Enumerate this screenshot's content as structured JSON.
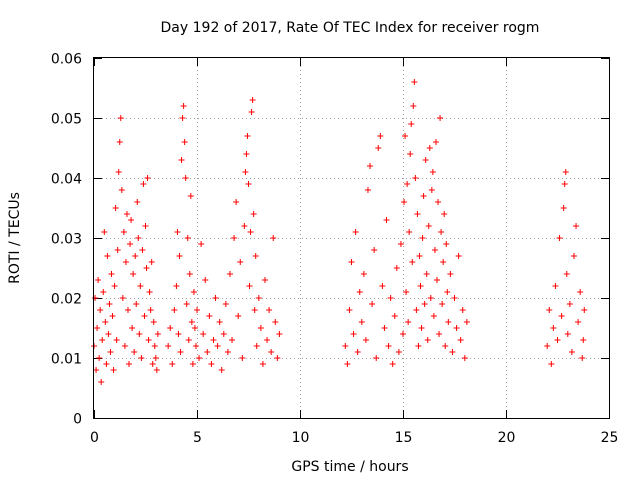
{
  "chart_data": {
    "type": "scatter",
    "title": "Day 192 of 2017, Rate Of TEC Index for receiver rogm",
    "xlabel": "GPS time / hours",
    "ylabel": "ROTI / TECUs",
    "xlim": [
      0,
      25
    ],
    "ylim": [
      0,
      0.06
    ],
    "xticks": [
      "0",
      "5",
      "10",
      "15",
      "20",
      "25"
    ],
    "xtick_values": [
      0,
      5,
      10,
      15,
      20,
      25
    ],
    "yticks": [
      "0",
      "0.01",
      "0.02",
      "0.03",
      "0.04",
      "0.05",
      "0.06"
    ],
    "ytick_values": [
      0,
      0.01,
      0.02,
      0.03,
      0.04,
      0.05,
      0.06
    ],
    "grid": true,
    "marker": "+",
    "marker_color": "#ff0000",
    "series": [
      {
        "name": "ROTI",
        "points": [
          [
            0.0,
            0.012
          ],
          [
            0.05,
            0.02
          ],
          [
            0.1,
            0.008
          ],
          [
            0.15,
            0.015
          ],
          [
            0.2,
            0.023
          ],
          [
            0.25,
            0.01
          ],
          [
            0.3,
            0.018
          ],
          [
            0.35,
            0.006
          ],
          [
            0.4,
            0.013
          ],
          [
            0.45,
            0.021
          ],
          [
            0.5,
            0.031
          ],
          [
            0.55,
            0.016
          ],
          [
            0.6,
            0.009
          ],
          [
            0.65,
            0.027
          ],
          [
            0.7,
            0.014
          ],
          [
            0.75,
            0.019
          ],
          [
            0.8,
            0.011
          ],
          [
            0.85,
            0.024
          ],
          [
            0.9,
            0.017
          ],
          [
            0.95,
            0.008
          ],
          [
            1.0,
            0.022
          ],
          [
            1.05,
            0.035
          ],
          [
            1.1,
            0.013
          ],
          [
            1.15,
            0.028
          ],
          [
            1.2,
            0.041
          ],
          [
            1.25,
            0.046
          ],
          [
            1.3,
            0.05
          ],
          [
            1.35,
            0.038
          ],
          [
            1.4,
            0.02
          ],
          [
            1.45,
            0.031
          ],
          [
            1.5,
            0.012
          ],
          [
            1.55,
            0.026
          ],
          [
            1.6,
            0.034
          ],
          [
            1.65,
            0.018
          ],
          [
            1.7,
            0.009
          ],
          [
            1.75,
            0.029
          ],
          [
            1.8,
            0.033
          ],
          [
            1.85,
            0.015
          ],
          [
            1.9,
            0.024
          ],
          [
            1.95,
            0.011
          ],
          [
            2.0,
            0.027
          ],
          [
            2.05,
            0.019
          ],
          [
            2.1,
            0.036
          ],
          [
            2.15,
            0.03
          ],
          [
            2.2,
            0.014
          ],
          [
            2.25,
            0.022
          ],
          [
            2.3,
            0.01
          ],
          [
            2.35,
            0.028
          ],
          [
            2.4,
            0.039
          ],
          [
            2.45,
            0.017
          ],
          [
            2.5,
            0.032
          ],
          [
            2.55,
            0.025
          ],
          [
            2.6,
            0.04
          ],
          [
            2.65,
            0.013
          ],
          [
            2.7,
            0.021
          ],
          [
            2.75,
            0.018
          ],
          [
            2.8,
            0.026
          ],
          [
            2.85,
            0.009
          ],
          [
            2.9,
            0.016
          ],
          [
            2.95,
            0.012
          ],
          [
            3.0,
            0.01
          ],
          [
            3.05,
            0.008
          ],
          [
            3.1,
            0.014
          ],
          [
            3.6,
            0.012
          ],
          [
            3.7,
            0.015
          ],
          [
            3.8,
            0.009
          ],
          [
            3.9,
            0.018
          ],
          [
            4.0,
            0.022
          ],
          [
            4.05,
            0.031
          ],
          [
            4.1,
            0.014
          ],
          [
            4.15,
            0.027
          ],
          [
            4.2,
            0.011
          ],
          [
            4.25,
            0.043
          ],
          [
            4.3,
            0.05
          ],
          [
            4.35,
            0.052
          ],
          [
            4.4,
            0.046
          ],
          [
            4.45,
            0.04
          ],
          [
            4.5,
            0.019
          ],
          [
            4.55,
            0.03
          ],
          [
            4.6,
            0.013
          ],
          [
            4.65,
            0.024
          ],
          [
            4.7,
            0.037
          ],
          [
            4.75,
            0.016
          ],
          [
            4.8,
            0.009
          ],
          [
            4.85,
            0.021
          ],
          [
            4.9,
            0.015
          ],
          [
            4.95,
            0.012
          ],
          [
            5.0,
            0.018
          ],
          [
            5.1,
            0.01
          ],
          [
            5.2,
            0.029
          ],
          [
            5.3,
            0.014
          ],
          [
            5.4,
            0.023
          ],
          [
            5.5,
            0.011
          ],
          [
            5.6,
            0.017
          ],
          [
            5.7,
            0.009
          ],
          [
            5.8,
            0.013
          ],
          [
            5.9,
            0.02
          ],
          [
            6.0,
            0.012
          ],
          [
            6.1,
            0.016
          ],
          [
            6.2,
            0.008
          ],
          [
            6.3,
            0.014
          ],
          [
            6.4,
            0.019
          ],
          [
            6.5,
            0.011
          ],
          [
            6.6,
            0.024
          ],
          [
            6.7,
            0.013
          ],
          [
            6.8,
            0.03
          ],
          [
            6.9,
            0.036
          ],
          [
            7.0,
            0.017
          ],
          [
            7.1,
            0.026
          ],
          [
            7.2,
            0.01
          ],
          [
            7.3,
            0.032
          ],
          [
            7.35,
            0.041
          ],
          [
            7.4,
            0.044
          ],
          [
            7.45,
            0.047
          ],
          [
            7.5,
            0.039
          ],
          [
            7.55,
            0.022
          ],
          [
            7.6,
            0.031
          ],
          [
            7.65,
            0.051
          ],
          [
            7.7,
            0.053
          ],
          [
            7.75,
            0.034
          ],
          [
            7.8,
            0.018
          ],
          [
            7.85,
            0.027
          ],
          [
            7.9,
            0.012
          ],
          [
            8.0,
            0.02
          ],
          [
            8.1,
            0.015
          ],
          [
            8.2,
            0.009
          ],
          [
            8.3,
            0.023
          ],
          [
            8.4,
            0.013
          ],
          [
            8.5,
            0.018
          ],
          [
            8.6,
            0.011
          ],
          [
            8.7,
            0.03
          ],
          [
            8.8,
            0.016
          ],
          [
            8.9,
            0.01
          ],
          [
            9.0,
            0.014
          ],
          [
            12.2,
            0.012
          ],
          [
            12.3,
            0.009
          ],
          [
            12.4,
            0.018
          ],
          [
            12.5,
            0.026
          ],
          [
            12.6,
            0.014
          ],
          [
            12.7,
            0.031
          ],
          [
            12.8,
            0.011
          ],
          [
            12.9,
            0.021
          ],
          [
            13.0,
            0.016
          ],
          [
            13.1,
            0.024
          ],
          [
            13.2,
            0.013
          ],
          [
            13.3,
            0.038
          ],
          [
            13.4,
            0.042
          ],
          [
            13.5,
            0.019
          ],
          [
            13.6,
            0.028
          ],
          [
            13.7,
            0.01
          ],
          [
            13.8,
            0.045
          ],
          [
            13.9,
            0.047
          ],
          [
            14.0,
            0.022
          ],
          [
            14.1,
            0.015
          ],
          [
            14.2,
            0.033
          ],
          [
            14.3,
            0.012
          ],
          [
            14.4,
            0.02
          ],
          [
            14.5,
            0.009
          ],
          [
            14.6,
            0.017
          ],
          [
            14.7,
            0.025
          ],
          [
            14.8,
            0.011
          ],
          [
            14.9,
            0.029
          ],
          [
            15.0,
            0.014
          ],
          [
            15.05,
            0.036
          ],
          [
            15.1,
            0.047
          ],
          [
            15.15,
            0.021
          ],
          [
            15.2,
            0.039
          ],
          [
            15.25,
            0.016
          ],
          [
            15.3,
            0.031
          ],
          [
            15.35,
            0.044
          ],
          [
            15.4,
            0.049
          ],
          [
            15.45,
            0.026
          ],
          [
            15.5,
            0.052
          ],
          [
            15.55,
            0.056
          ],
          [
            15.6,
            0.04
          ],
          [
            15.65,
            0.018
          ],
          [
            15.7,
            0.034
          ],
          [
            15.75,
            0.012
          ],
          [
            15.8,
            0.027
          ],
          [
            15.85,
            0.022
          ],
          [
            15.9,
            0.015
          ],
          [
            15.95,
            0.03
          ],
          [
            16.0,
            0.037
          ],
          [
            16.05,
            0.019
          ],
          [
            16.1,
            0.043
          ],
          [
            16.15,
            0.024
          ],
          [
            16.2,
            0.013
          ],
          [
            16.25,
            0.032
          ],
          [
            16.3,
            0.045
          ],
          [
            16.35,
            0.02
          ],
          [
            16.4,
            0.038
          ],
          [
            16.45,
            0.041
          ],
          [
            16.5,
            0.017
          ],
          [
            16.55,
            0.028
          ],
          [
            16.6,
            0.046
          ],
          [
            16.65,
            0.023
          ],
          [
            16.7,
            0.036
          ],
          [
            16.75,
            0.014
          ],
          [
            16.8,
            0.05
          ],
          [
            16.85,
            0.031
          ],
          [
            16.9,
            0.019
          ],
          [
            16.95,
            0.026
          ],
          [
            17.0,
            0.034
          ],
          [
            17.05,
            0.012
          ],
          [
            17.1,
            0.029
          ],
          [
            17.15,
            0.021
          ],
          [
            17.2,
            0.016
          ],
          [
            17.3,
            0.024
          ],
          [
            17.4,
            0.011
          ],
          [
            17.5,
            0.02
          ],
          [
            17.6,
            0.015
          ],
          [
            17.7,
            0.027
          ],
          [
            17.8,
            0.013
          ],
          [
            17.9,
            0.018
          ],
          [
            18.0,
            0.01
          ],
          [
            18.1,
            0.016
          ],
          [
            22.0,
            0.012
          ],
          [
            22.1,
            0.018
          ],
          [
            22.2,
            0.009
          ],
          [
            22.3,
            0.015
          ],
          [
            22.4,
            0.022
          ],
          [
            22.5,
            0.013
          ],
          [
            22.6,
            0.03
          ],
          [
            22.7,
            0.017
          ],
          [
            22.8,
            0.035
          ],
          [
            22.85,
            0.039
          ],
          [
            22.9,
            0.041
          ],
          [
            22.95,
            0.024
          ],
          [
            23.0,
            0.014
          ],
          [
            23.1,
            0.019
          ],
          [
            23.2,
            0.011
          ],
          [
            23.3,
            0.027
          ],
          [
            23.4,
            0.032
          ],
          [
            23.5,
            0.016
          ],
          [
            23.6,
            0.021
          ],
          [
            23.7,
            0.01
          ],
          [
            23.75,
            0.013
          ],
          [
            23.8,
            0.018
          ]
        ]
      }
    ]
  }
}
